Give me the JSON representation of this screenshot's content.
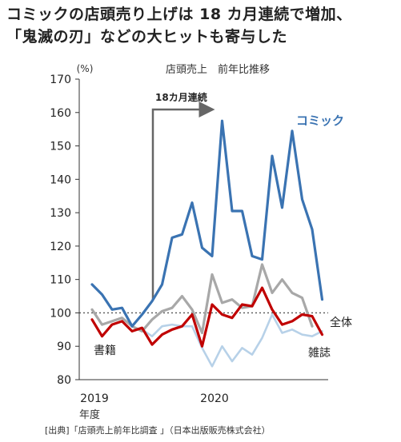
{
  "header": {
    "title_line1": "コミックの店頭売り上げは 18 カ月連続で増加、",
    "title_line2": "「鬼滅の刃」などの大ヒットも寄与した"
  },
  "chart_data": {
    "type": "line",
    "subtitle": "店頭売上　前年比推移",
    "ylabel": "(%)",
    "ylim": [
      80,
      170
    ],
    "yticks": [
      80,
      90,
      100,
      110,
      120,
      130,
      140,
      150,
      160,
      170
    ],
    "xtick_labels": [
      "2019",
      "2020"
    ],
    "xlabel": "年度",
    "reference_line": 100,
    "annotation": "18カ月連続",
    "source": "[出典]「店頭売上前年比調査 」（日本出版販売株式会社）",
    "colors": {
      "comic": "#3a73b2",
      "total": "#a8a8a8",
      "books": "#c00000",
      "magazine": "#b7d1e8"
    },
    "series": [
      {
        "name": "コミック",
        "key": "comic",
        "values": [
          108.5,
          105.5,
          101,
          101.5,
          96,
          99.5,
          103.5,
          108.5,
          122.5,
          123.5,
          133,
          119.5,
          117,
          157.5,
          130.5,
          130.5,
          117,
          116,
          147,
          131.5,
          154.5,
          134,
          125,
          104
        ]
      },
      {
        "name": "全体",
        "key": "total",
        "values": [
          101,
          96.5,
          97.5,
          98.5,
          96,
          94.5,
          98,
          100.5,
          101.5,
          105,
          101,
          94,
          111.5,
          103,
          104,
          101.5,
          102,
          114.5,
          106,
          110,
          106,
          104.5,
          96,
          null
        ]
      },
      {
        "name": "書籍",
        "key": "books",
        "values": [
          98,
          93,
          96.5,
          97.5,
          94.5,
          95.5,
          90.5,
          93.5,
          95,
          96,
          99.5,
          90,
          102.5,
          99.5,
          98.5,
          102.5,
          102,
          107.5,
          101,
          96.5,
          97.5,
          99.5,
          99,
          93.5
        ]
      },
      {
        "name": "雑誌",
        "key": "magazine",
        "values": [
          null,
          null,
          null,
          null,
          null,
          95,
          93,
          96,
          96.5,
          96,
          96,
          89.5,
          84,
          90,
          85.5,
          89.5,
          87.5,
          92.5,
          99.5,
          94,
          95,
          93.5,
          93,
          94.5
        ]
      }
    ],
    "series_labels": {
      "comic": "コミック",
      "total": "全体",
      "books": "書籍",
      "magazine": "雑誌"
    }
  }
}
